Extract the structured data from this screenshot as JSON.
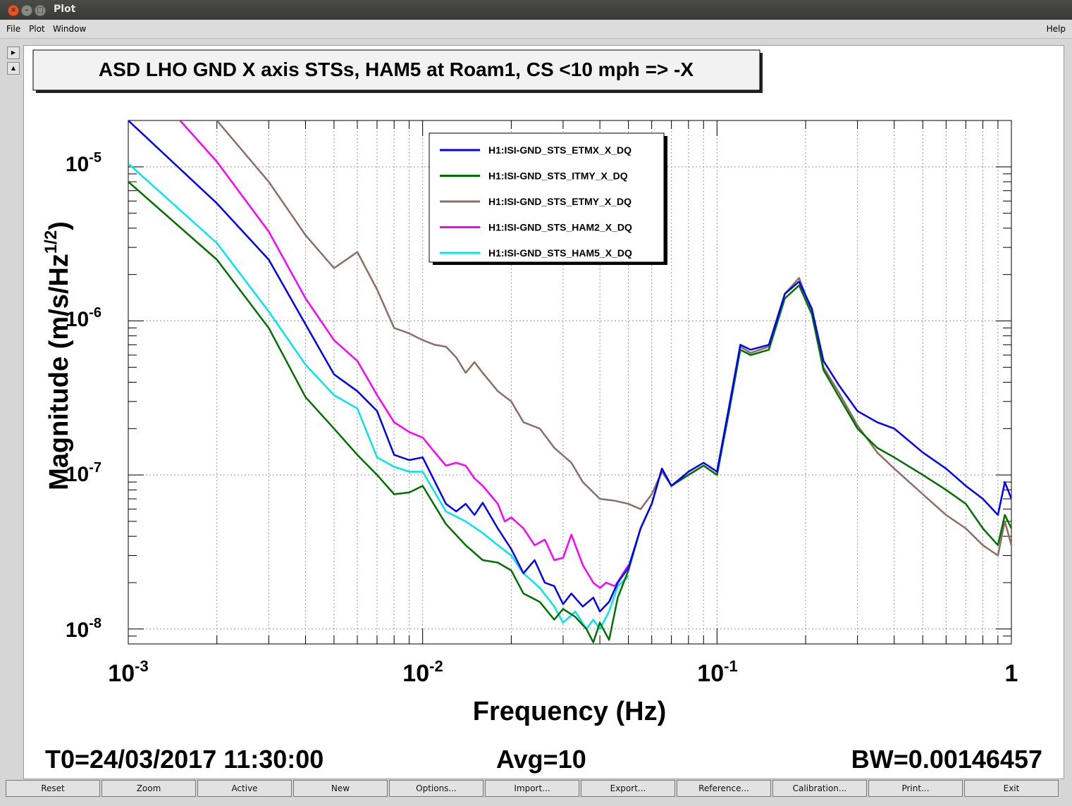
{
  "window": {
    "title": "Plot"
  },
  "menu": {
    "file": "File",
    "plot": "Plot",
    "window": "Window",
    "help": "Help"
  },
  "chart_data": {
    "type": "line",
    "title": "ASD LHO GND X axis STSs, HAM5 at Roam1, CS <10 mph => -X",
    "xlabel": "Frequency (Hz)",
    "ylabel": "Magnitude (m/s/Hz^1/2)",
    "xscale": "log",
    "yscale": "log",
    "xlim": [
      0.001,
      1
    ],
    "ylim": [
      8e-09,
      2e-05
    ],
    "grid": true,
    "legend_position": "top-center",
    "x_ticks": [
      {
        "base": "10",
        "exp": "-3"
      },
      {
        "base": "10",
        "exp": "-2"
      },
      {
        "base": "10",
        "exp": "-1"
      },
      {
        "base": "1",
        "exp": ""
      }
    ],
    "y_ticks": [
      {
        "base": "10",
        "exp": "-5"
      },
      {
        "base": "10",
        "exp": "-6"
      },
      {
        "base": "10",
        "exp": "-7"
      },
      {
        "base": "10",
        "exp": "-8"
      }
    ],
    "series": [
      {
        "name": "H1:ISI-GND_STS_ETMX_X_DQ",
        "color": "#0000ff",
        "points": [
          [
            0.001,
            2e-05
          ],
          [
            0.002,
            5.8e-06
          ],
          [
            0.003,
            2.5e-06
          ],
          [
            0.004,
            9.5e-07
          ],
          [
            0.005,
            4.5e-07
          ],
          [
            0.006,
            3.5e-07
          ],
          [
            0.007,
            2.6e-07
          ],
          [
            0.008,
            1.35e-07
          ],
          [
            0.009,
            1.25e-07
          ],
          [
            0.01,
            1.3e-07
          ],
          [
            0.012,
            6.5e-08
          ],
          [
            0.013,
            5.8e-08
          ],
          [
            0.014,
            6.5e-08
          ],
          [
            0.015,
            5.5e-08
          ],
          [
            0.016,
            6.6e-08
          ],
          [
            0.018,
            4.5e-08
          ],
          [
            0.02,
            3.3e-08
          ],
          [
            0.022,
            2.3e-08
          ],
          [
            0.024,
            2.8e-08
          ],
          [
            0.026,
            2e-08
          ],
          [
            0.028,
            1.9e-08
          ],
          [
            0.03,
            1.45e-08
          ],
          [
            0.032,
            1.7e-08
          ],
          [
            0.035,
            1.4e-08
          ],
          [
            0.038,
            1.6e-08
          ],
          [
            0.04,
            1.3e-08
          ],
          [
            0.043,
            1.5e-08
          ],
          [
            0.046,
            2e-08
          ],
          [
            0.05,
            2.5e-08
          ],
          [
            0.055,
            4.5e-08
          ],
          [
            0.06,
            6.5e-08
          ],
          [
            0.065,
            1.1e-07
          ],
          [
            0.07,
            8.5e-08
          ],
          [
            0.08,
            1.05e-07
          ],
          [
            0.09,
            1.2e-07
          ],
          [
            0.1,
            1.05e-07
          ],
          [
            0.11,
            2.8e-07
          ],
          [
            0.12,
            7e-07
          ],
          [
            0.13,
            6.5e-07
          ],
          [
            0.15,
            7e-07
          ],
          [
            0.17,
            1.5e-06
          ],
          [
            0.19,
            1.8e-06
          ],
          [
            0.21,
            1.2e-06
          ],
          [
            0.23,
            5.5e-07
          ],
          [
            0.26,
            3.8e-07
          ],
          [
            0.3,
            2.6e-07
          ],
          [
            0.35,
            2.2e-07
          ],
          [
            0.4,
            2e-07
          ],
          [
            0.5,
            1.4e-07
          ],
          [
            0.6,
            1.1e-07
          ],
          [
            0.7,
            8.5e-08
          ],
          [
            0.8,
            7e-08
          ],
          [
            0.9,
            5.5e-08
          ],
          [
            0.95,
            9e-08
          ],
          [
            1.0,
            7e-08
          ]
        ]
      },
      {
        "name": "H1:ISI-GND_STS_ITMY_X_DQ",
        "color": "#007000",
        "points": [
          [
            0.001,
            8e-06
          ],
          [
            0.002,
            2.5e-06
          ],
          [
            0.003,
            9e-07
          ],
          [
            0.004,
            3.2e-07
          ],
          [
            0.005,
            2e-07
          ],
          [
            0.006,
            1.35e-07
          ],
          [
            0.007,
            1e-07
          ],
          [
            0.008,
            7.5e-08
          ],
          [
            0.009,
            7.7e-08
          ],
          [
            0.01,
            8.5e-08
          ],
          [
            0.012,
            4.8e-08
          ],
          [
            0.014,
            3.5e-08
          ],
          [
            0.016,
            2.8e-08
          ],
          [
            0.018,
            2.7e-08
          ],
          [
            0.02,
            2.4e-08
          ],
          [
            0.022,
            1.7e-08
          ],
          [
            0.025,
            1.5e-08
          ],
          [
            0.028,
            1.15e-08
          ],
          [
            0.03,
            1.35e-08
          ],
          [
            0.033,
            1.2e-08
          ],
          [
            0.036,
            1e-08
          ],
          [
            0.038,
            8.2e-09
          ],
          [
            0.04,
            1.1e-08
          ],
          [
            0.043,
            8.5e-09
          ],
          [
            0.046,
            1.6e-08
          ],
          [
            0.05,
            2.4e-08
          ],
          [
            0.055,
            4.5e-08
          ],
          [
            0.06,
            6.5e-08
          ],
          [
            0.065,
            1.1e-07
          ],
          [
            0.07,
            8.5e-08
          ],
          [
            0.08,
            1e-07
          ],
          [
            0.09,
            1.15e-07
          ],
          [
            0.1,
            1e-07
          ],
          [
            0.11,
            2.6e-07
          ],
          [
            0.12,
            6.5e-07
          ],
          [
            0.13,
            6e-07
          ],
          [
            0.15,
            6.5e-07
          ],
          [
            0.17,
            1.4e-06
          ],
          [
            0.19,
            1.7e-06
          ],
          [
            0.21,
            1.1e-06
          ],
          [
            0.23,
            4.8e-07
          ],
          [
            0.26,
            3.2e-07
          ],
          [
            0.3,
            2e-07
          ],
          [
            0.35,
            1.5e-07
          ],
          [
            0.4,
            1.3e-07
          ],
          [
            0.5,
            1e-07
          ],
          [
            0.6,
            8e-08
          ],
          [
            0.7,
            6.5e-08
          ],
          [
            0.8,
            4.5e-08
          ],
          [
            0.9,
            3.5e-08
          ],
          [
            0.95,
            5.5e-08
          ],
          [
            1.0,
            4.5e-08
          ]
        ]
      },
      {
        "name": "H1:ISI-GND_STS_ETMY_X_DQ",
        "color": "#8c6e64",
        "points": [
          [
            0.002,
            2e-05
          ],
          [
            0.003,
            8e-06
          ],
          [
            0.004,
            3.6e-06
          ],
          [
            0.005,
            2.2e-06
          ],
          [
            0.006,
            2.8e-06
          ],
          [
            0.007,
            1.6e-06
          ],
          [
            0.008,
            9e-07
          ],
          [
            0.009,
            8.3e-07
          ],
          [
            0.01,
            7.5e-07
          ],
          [
            0.011,
            7e-07
          ],
          [
            0.012,
            6.8e-07
          ],
          [
            0.013,
            5.8e-07
          ],
          [
            0.014,
            4.6e-07
          ],
          [
            0.015,
            5.4e-07
          ],
          [
            0.016,
            4.6e-07
          ],
          [
            0.018,
            3.5e-07
          ],
          [
            0.02,
            3e-07
          ],
          [
            0.022,
            2.2e-07
          ],
          [
            0.025,
            2e-07
          ],
          [
            0.028,
            1.5e-07
          ],
          [
            0.032,
            1.2e-07
          ],
          [
            0.035,
            9e-08
          ],
          [
            0.04,
            7e-08
          ],
          [
            0.045,
            6.8e-08
          ],
          [
            0.05,
            6.5e-08
          ],
          [
            0.055,
            6e-08
          ],
          [
            0.06,
            7.5e-08
          ],
          [
            0.065,
            1.05e-07
          ],
          [
            0.07,
            8.5e-08
          ],
          [
            0.08,
            1e-07
          ],
          [
            0.09,
            1.15e-07
          ],
          [
            0.1,
            1e-07
          ],
          [
            0.11,
            2.7e-07
          ],
          [
            0.12,
            6.8e-07
          ],
          [
            0.13,
            6.2e-07
          ],
          [
            0.15,
            6.8e-07
          ],
          [
            0.17,
            1.5e-06
          ],
          [
            0.19,
            1.9e-06
          ],
          [
            0.21,
            1.15e-06
          ],
          [
            0.23,
            5e-07
          ],
          [
            0.26,
            3.4e-07
          ],
          [
            0.3,
            2.1e-07
          ],
          [
            0.35,
            1.4e-07
          ],
          [
            0.4,
            1.1e-07
          ],
          [
            0.5,
            7.5e-08
          ],
          [
            0.6,
            5.5e-08
          ],
          [
            0.7,
            4.5e-08
          ],
          [
            0.8,
            3.5e-08
          ],
          [
            0.9,
            3e-08
          ],
          [
            0.95,
            5e-08
          ],
          [
            1.0,
            3.5e-08
          ]
        ]
      },
      {
        "name": "H1:ISI-GND_STS_HAM2_X_DQ",
        "color": "#ff00ff",
        "points": [
          [
            0.0015,
            2e-05
          ],
          [
            0.002,
            1.08e-05
          ],
          [
            0.003,
            3.8e-06
          ],
          [
            0.004,
            1.4e-06
          ],
          [
            0.005,
            7.5e-07
          ],
          [
            0.006,
            5.5e-07
          ],
          [
            0.007,
            3.3e-07
          ],
          [
            0.008,
            2.2e-07
          ],
          [
            0.009,
            1.9e-07
          ],
          [
            0.01,
            1.75e-07
          ],
          [
            0.011,
            1.4e-07
          ],
          [
            0.012,
            1.15e-07
          ],
          [
            0.013,
            1.2e-07
          ],
          [
            0.014,
            1.15e-07
          ],
          [
            0.015,
            9.5e-08
          ],
          [
            0.016,
            8.5e-08
          ],
          [
            0.018,
            6.5e-08
          ],
          [
            0.019,
            5e-08
          ],
          [
            0.02,
            5.3e-08
          ],
          [
            0.022,
            4.5e-08
          ],
          [
            0.024,
            3.5e-08
          ],
          [
            0.026,
            3.8e-08
          ],
          [
            0.028,
            2.8e-08
          ],
          [
            0.03,
            2.9e-08
          ],
          [
            0.032,
            4.1e-08
          ],
          [
            0.035,
            2.6e-08
          ],
          [
            0.038,
            2e-08
          ],
          [
            0.04,
            1.85e-08
          ],
          [
            0.042,
            2e-08
          ],
          [
            0.045,
            1.9e-08
          ],
          [
            0.048,
            2.3e-08
          ],
          [
            0.05,
            2.6e-08
          ]
        ]
      },
      {
        "name": "H1:ISI-GND_STS_HAM5_X_DQ",
        "color": "#00e5ee",
        "points": [
          [
            0.001,
            1.05e-05
          ],
          [
            0.002,
            3.2e-06
          ],
          [
            0.003,
            1.15e-06
          ],
          [
            0.004,
            5.2e-07
          ],
          [
            0.005,
            3.3e-07
          ],
          [
            0.006,
            2.7e-07
          ],
          [
            0.007,
            1.3e-07
          ],
          [
            0.008,
            1.13e-07
          ],
          [
            0.009,
            1.05e-07
          ],
          [
            0.01,
            1.05e-07
          ],
          [
            0.012,
            5.8e-08
          ],
          [
            0.014,
            5e-08
          ],
          [
            0.016,
            4.2e-08
          ],
          [
            0.018,
            3.5e-08
          ],
          [
            0.02,
            3e-08
          ],
          [
            0.022,
            2.3e-08
          ],
          [
            0.025,
            1.85e-08
          ],
          [
            0.028,
            1.4e-08
          ],
          [
            0.03,
            1.1e-08
          ],
          [
            0.033,
            1.3e-08
          ],
          [
            0.036,
            1e-08
          ],
          [
            0.038,
            1.15e-08
          ],
          [
            0.04,
            1e-08
          ],
          [
            0.043,
            1.3e-08
          ],
          [
            0.046,
            1.9e-08
          ],
          [
            0.05,
            2.2e-08
          ]
        ]
      }
    ]
  },
  "footer": {
    "t0": "T0=24/03/2017 11:30:00",
    "avg": "Avg=10",
    "bw": "BW=0.00146457"
  },
  "toolbar": {
    "reset": "Reset",
    "zoom": "Zoom",
    "active": "Active",
    "new": "New",
    "options": "Options...",
    "import": "Import...",
    "export": "Export...",
    "reference": "Reference...",
    "calibration": "Calibration...",
    "print": "Print...",
    "exit": "Exit"
  }
}
